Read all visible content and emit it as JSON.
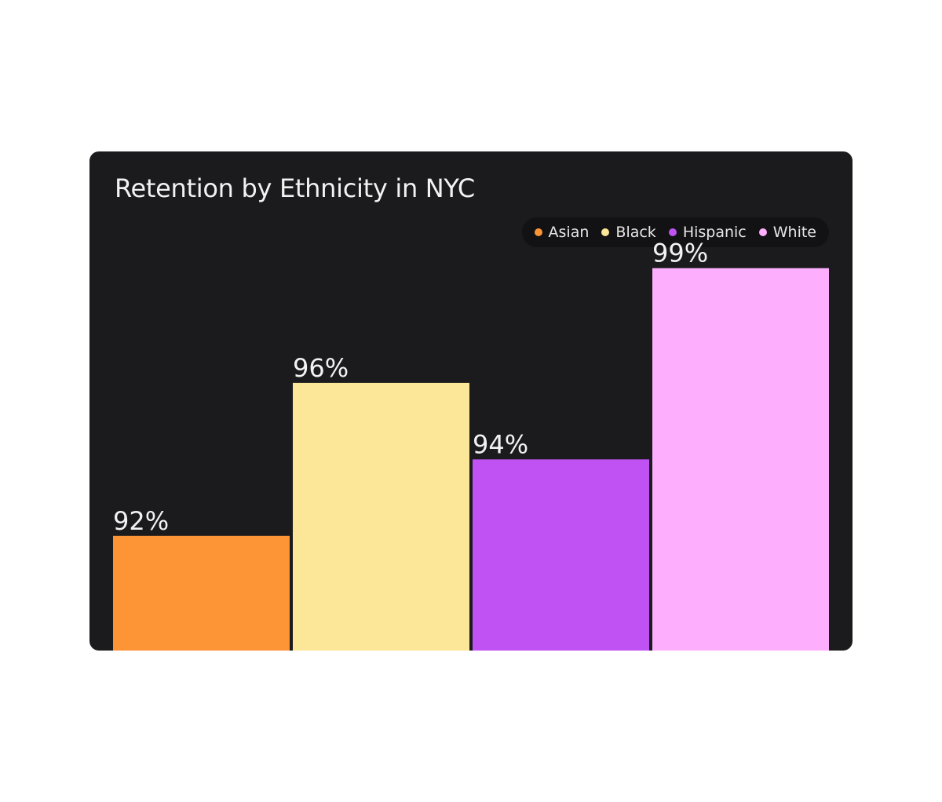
{
  "chart_data": {
    "type": "bar",
    "title": "Retention by Ethnicity in NYC",
    "categories": [
      "Asian",
      "Black",
      "Hispanic",
      "White"
    ],
    "values": [
      92,
      96,
      94,
      99
    ],
    "data_labels": [
      "92%",
      "96%",
      "94%",
      "99%"
    ],
    "colors": [
      "#fd9435",
      "#fce698",
      "#c052f3",
      "#fdaefc"
    ],
    "ylim": [
      89,
      100
    ],
    "legend": {
      "placement": "top-right",
      "entries": [
        "Asian",
        "Black",
        "Hispanic",
        "White"
      ]
    },
    "grid": false,
    "background": "#1b1b1d"
  }
}
